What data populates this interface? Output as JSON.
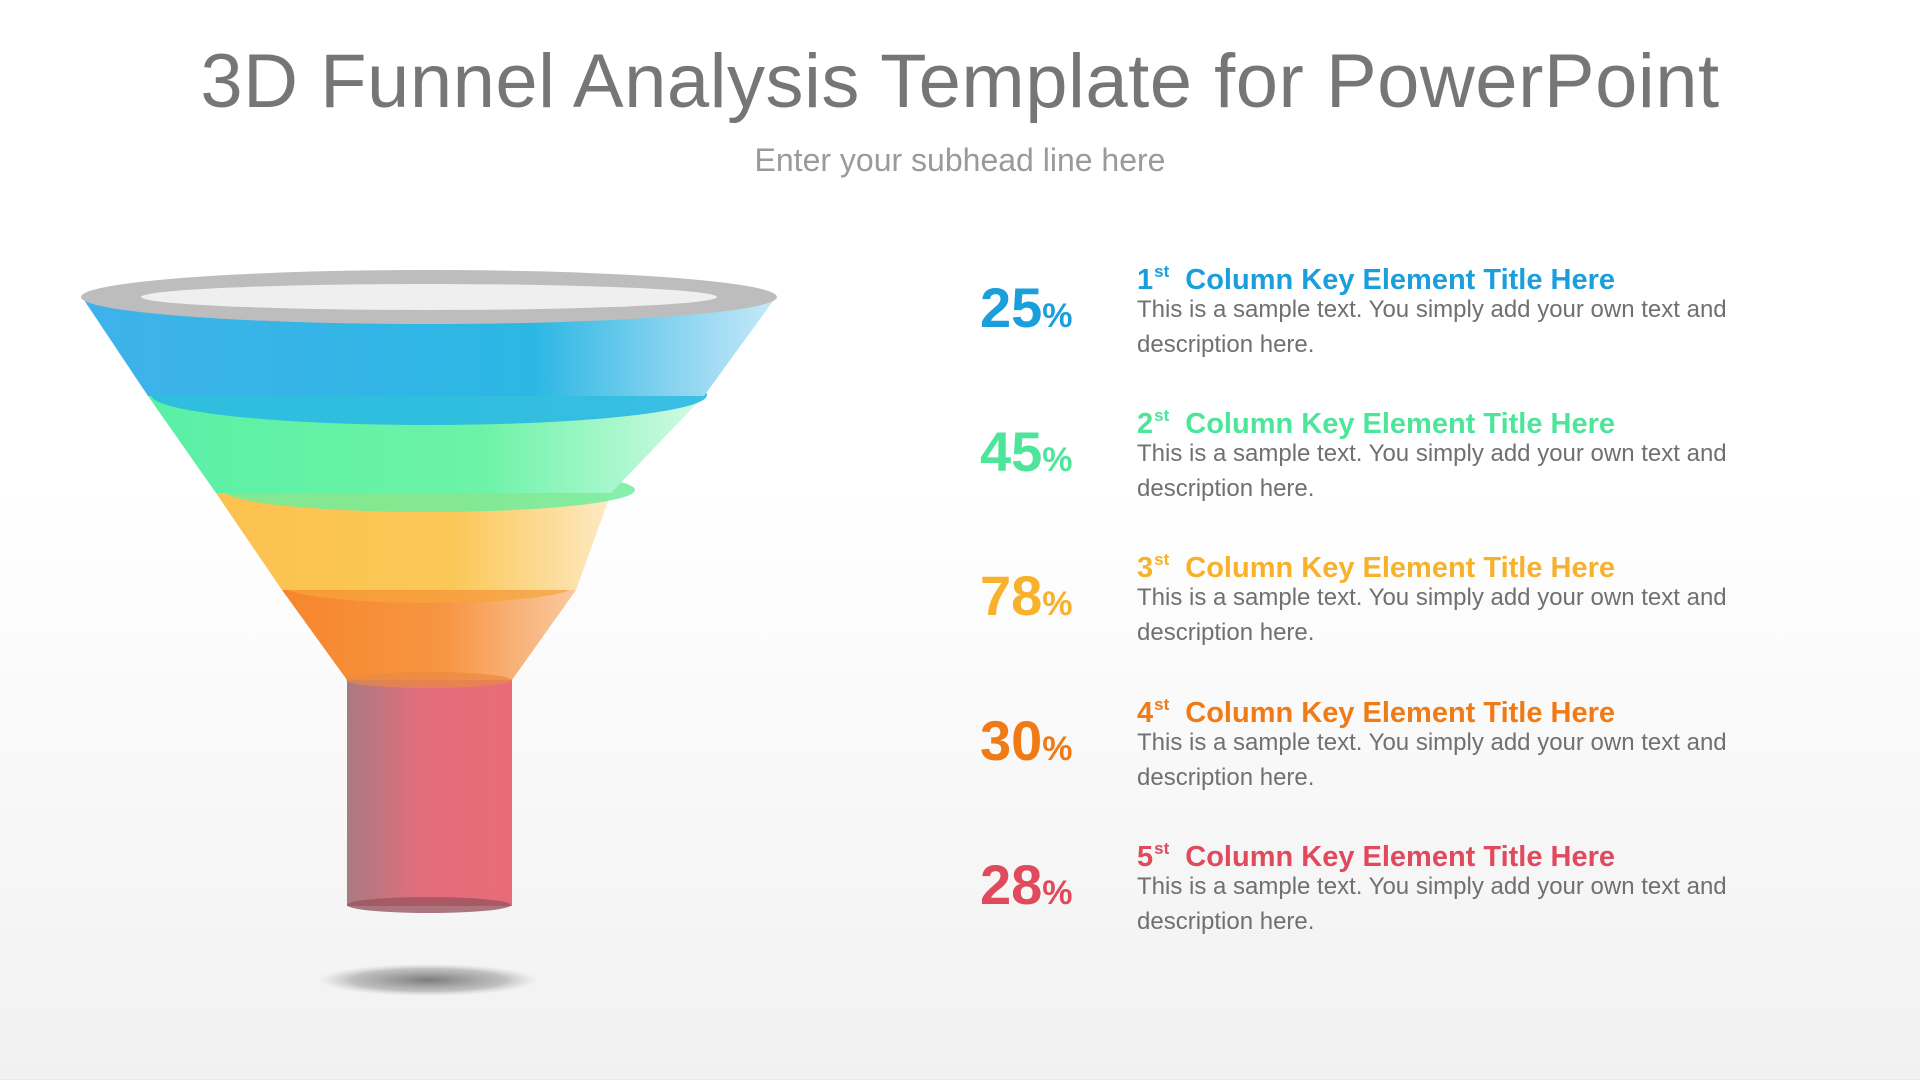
{
  "slide": {
    "title": "3D Funnel Analysis Template for PowerPoint",
    "subtitle": "Enter your subhead line here"
  },
  "colors": {
    "blue": "#1a9fdc",
    "green": "#4ce59a",
    "yellow": "#f7b12b",
    "orange": "#f07b16",
    "red": "#df4a5c",
    "rim": "#bdbdbd"
  },
  "items": [
    {
      "value": "25",
      "symbol": "%",
      "ordinal": "1",
      "suffix": "st",
      "title": "Column Key Element Title Here",
      "description": "This is a sample text. You simply add your own text and description here.",
      "color": "#1a9fdc"
    },
    {
      "value": "45",
      "symbol": "%",
      "ordinal": "2",
      "suffix": "st",
      "title": "Column Key Element Title Here",
      "description": "This is a sample text. You simply add your own text and description here.",
      "color": "#4ce59a"
    },
    {
      "value": "78",
      "symbol": "%",
      "ordinal": "3",
      "suffix": "st",
      "title": "Column Key Element Title Here",
      "description": "This is a sample text. You simply add your own text and description here.",
      "color": "#f7b12b"
    },
    {
      "value": "30",
      "symbol": "%",
      "ordinal": "4",
      "suffix": "st",
      "title": "Column Key Element Title Here",
      "description": "This is a sample text. You simply add your own text and description here.",
      "color": "#f07b16"
    },
    {
      "value": "28",
      "symbol": "%",
      "ordinal": "5",
      "suffix": "st",
      "title": "Column Key Element Title Here",
      "description": "This is a sample text. You simply add your own text and description here.",
      "color": "#df4a5c"
    }
  ]
}
